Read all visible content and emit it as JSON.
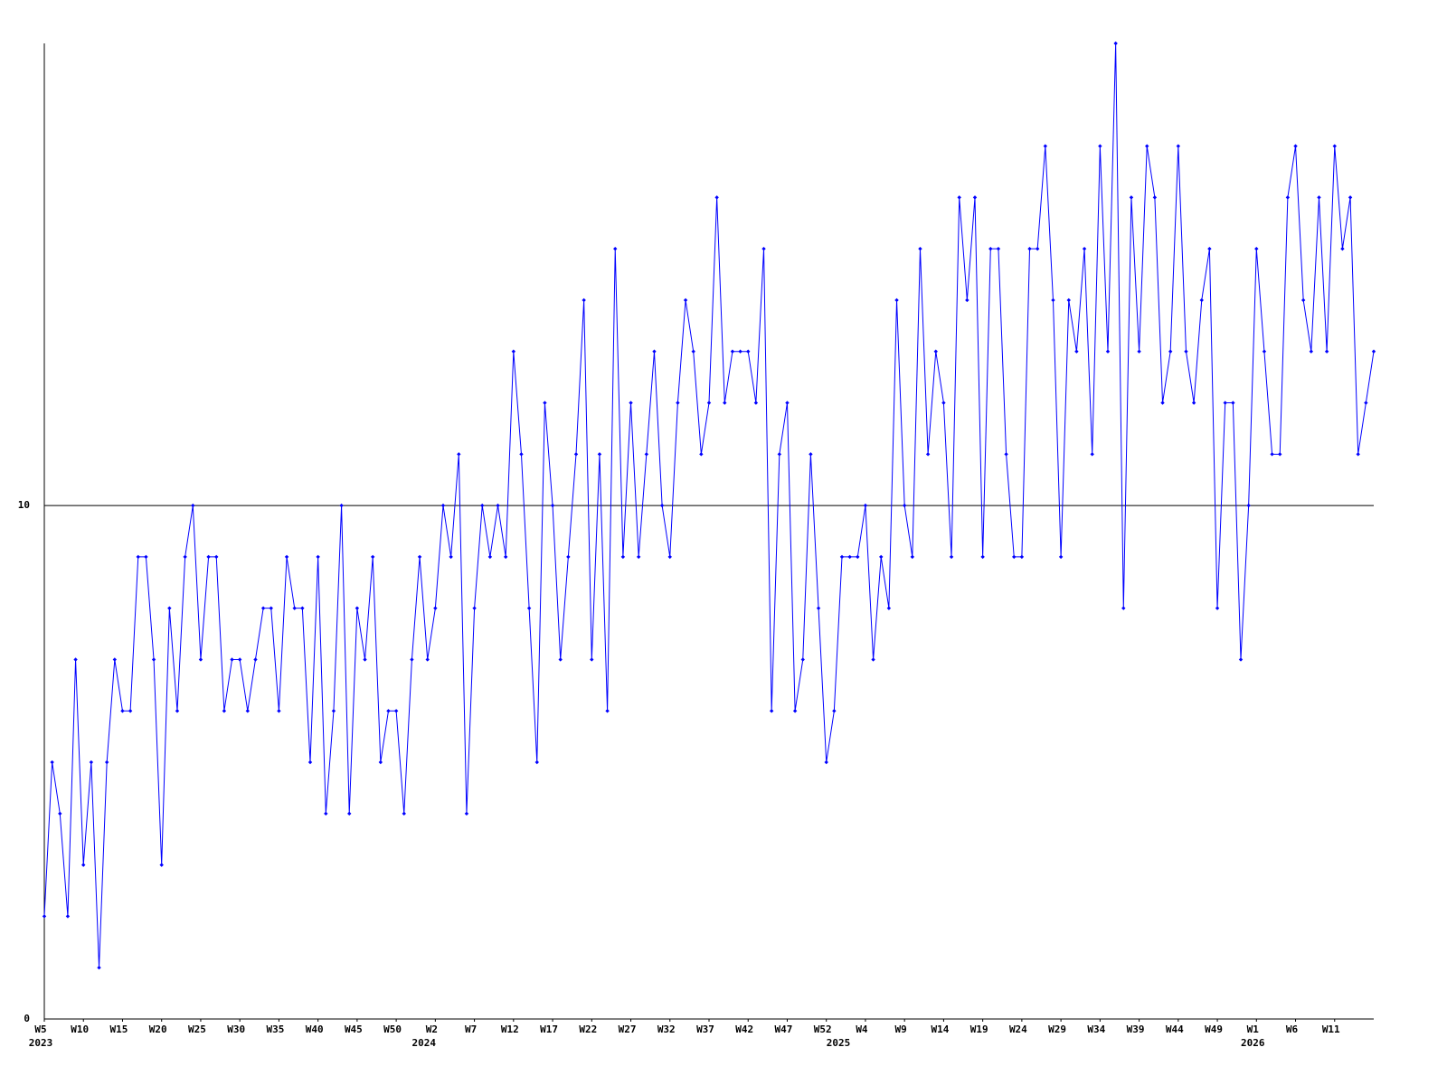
{
  "chart_data": {
    "type": "line",
    "values": [
      2,
      5,
      4,
      2,
      7,
      3,
      5,
      1,
      5,
      7,
      6,
      6,
      9,
      9,
      7,
      3,
      8,
      6,
      9,
      10,
      7,
      9,
      9,
      6,
      7,
      7,
      6,
      7,
      8,
      8,
      6,
      9,
      8,
      8,
      5,
      9,
      4,
      6,
      10,
      4,
      8,
      7,
      9,
      5,
      6,
      6,
      4,
      7,
      9,
      7,
      8,
      10,
      9,
      11,
      4,
      8,
      10,
      9,
      10,
      9,
      13,
      11,
      8,
      5,
      12,
      10,
      7,
      9,
      11,
      14,
      7,
      11,
      6,
      15,
      9,
      12,
      9,
      11,
      13,
      10,
      9,
      12,
      14,
      13,
      11,
      12,
      16,
      12,
      13,
      13,
      13,
      12,
      15,
      6,
      11,
      12,
      6,
      7,
      11,
      8,
      5,
      6,
      9,
      9,
      9,
      10,
      7,
      9,
      8,
      14,
      10,
      9,
      15,
      11,
      13,
      12,
      9,
      16,
      14,
      16,
      9,
      15,
      15,
      11,
      9,
      9,
      15,
      15,
      17,
      14,
      9,
      14,
      13,
      15,
      11,
      17,
      13,
      19,
      8,
      16,
      13,
      17,
      16,
      12,
      13,
      17,
      13,
      12,
      14,
      15,
      8,
      12,
      12,
      7,
      10,
      15,
      13,
      11,
      11,
      16,
      17,
      14,
      13,
      16,
      13,
      17,
      15,
      16,
      11,
      12,
      13
    ],
    "color": "#0000ff",
    "xlim": [
      0,
      170
    ],
    "xticks": [
      {
        "value": 0,
        "label": "W5"
      },
      {
        "value": 5,
        "label": "W10"
      },
      {
        "value": 10,
        "label": "W15"
      },
      {
        "value": 15,
        "label": "W20"
      },
      {
        "value": 20,
        "label": "W25"
      },
      {
        "value": 25,
        "label": "W30"
      },
      {
        "value": 30,
        "label": "W35"
      },
      {
        "value": 35,
        "label": "W40"
      },
      {
        "value": 40,
        "label": "W45"
      },
      {
        "value": 45,
        "label": "W50"
      },
      {
        "value": 50,
        "label": "W2"
      },
      {
        "value": 55,
        "label": "W7"
      },
      {
        "value": 60,
        "label": "W12"
      },
      {
        "value": 65,
        "label": "W17"
      },
      {
        "value": 70,
        "label": "W22"
      },
      {
        "value": 75,
        "label": "W27"
      },
      {
        "value": 80,
        "label": "W32"
      },
      {
        "value": 85,
        "label": "W37"
      },
      {
        "value": 90,
        "label": "W42"
      },
      {
        "value": 95,
        "label": "W47"
      },
      {
        "value": 100,
        "label": "W52"
      },
      {
        "value": 105,
        "label": "W4"
      },
      {
        "value": 110,
        "label": "W9"
      },
      {
        "value": 115,
        "label": "W14"
      },
      {
        "value": 120,
        "label": "W19"
      },
      {
        "value": 125,
        "label": "W24"
      },
      {
        "value": 130,
        "label": "W29"
      },
      {
        "value": 135,
        "label": "W34"
      },
      {
        "value": 140,
        "label": "W39"
      },
      {
        "value": 145,
        "label": "W44"
      },
      {
        "value": 150,
        "label": "W49"
      },
      {
        "value": 155,
        "label": "W1"
      },
      {
        "value": 160,
        "label": "W6"
      },
      {
        "value": 165,
        "label": "W11"
      }
    ],
    "year_labels": [
      {
        "value": 0,
        "label": "2023"
      },
      {
        "value": 49,
        "label": "2024"
      },
      {
        "value": 102,
        "label": "2025"
      },
      {
        "value": 155,
        "label": "2026"
      }
    ],
    "ylim": [
      0,
      19
    ],
    "yticks": [
      0,
      10
    ],
    "grid": true
  }
}
